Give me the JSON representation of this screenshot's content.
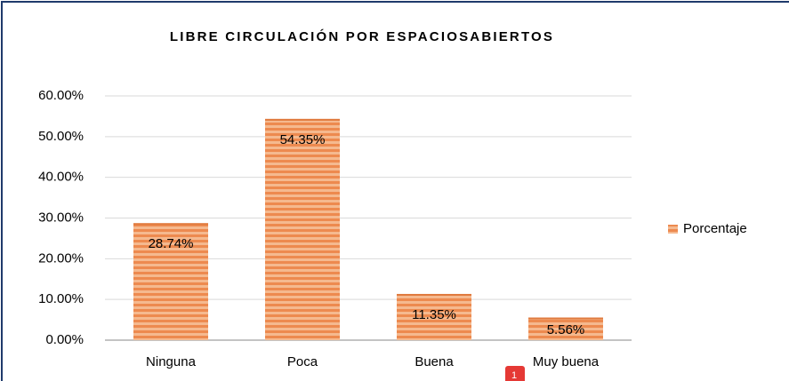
{
  "chart_data": {
    "type": "bar",
    "title": "LIBRE CIRCULACIÓN POR ESPACIOSABIERTOS",
    "categories": [
      "Ninguna",
      "Poca",
      "Buena",
      "Muy buena"
    ],
    "series": [
      {
        "name": "Porcentaje",
        "color": "#f0935a",
        "values": [
          28.74,
          54.35,
          11.35,
          5.56
        ],
        "value_labels": [
          "28.74%",
          "54.35%",
          "11.35%",
          "5.56%"
        ]
      }
    ],
    "ylim": [
      0,
      60
    ],
    "yticks": [
      {
        "value": 0,
        "label": "0.00%"
      },
      {
        "value": 10,
        "label": "10.00%"
      },
      {
        "value": 20,
        "label": "20.00%"
      },
      {
        "value": 30,
        "label": "30.00%"
      },
      {
        "value": 40,
        "label": "40.00%"
      },
      {
        "value": 50,
        "label": "50.00%"
      },
      {
        "value": 60,
        "label": "60.00%"
      }
    ],
    "grid": true,
    "legend": "right"
  },
  "badge": "1"
}
